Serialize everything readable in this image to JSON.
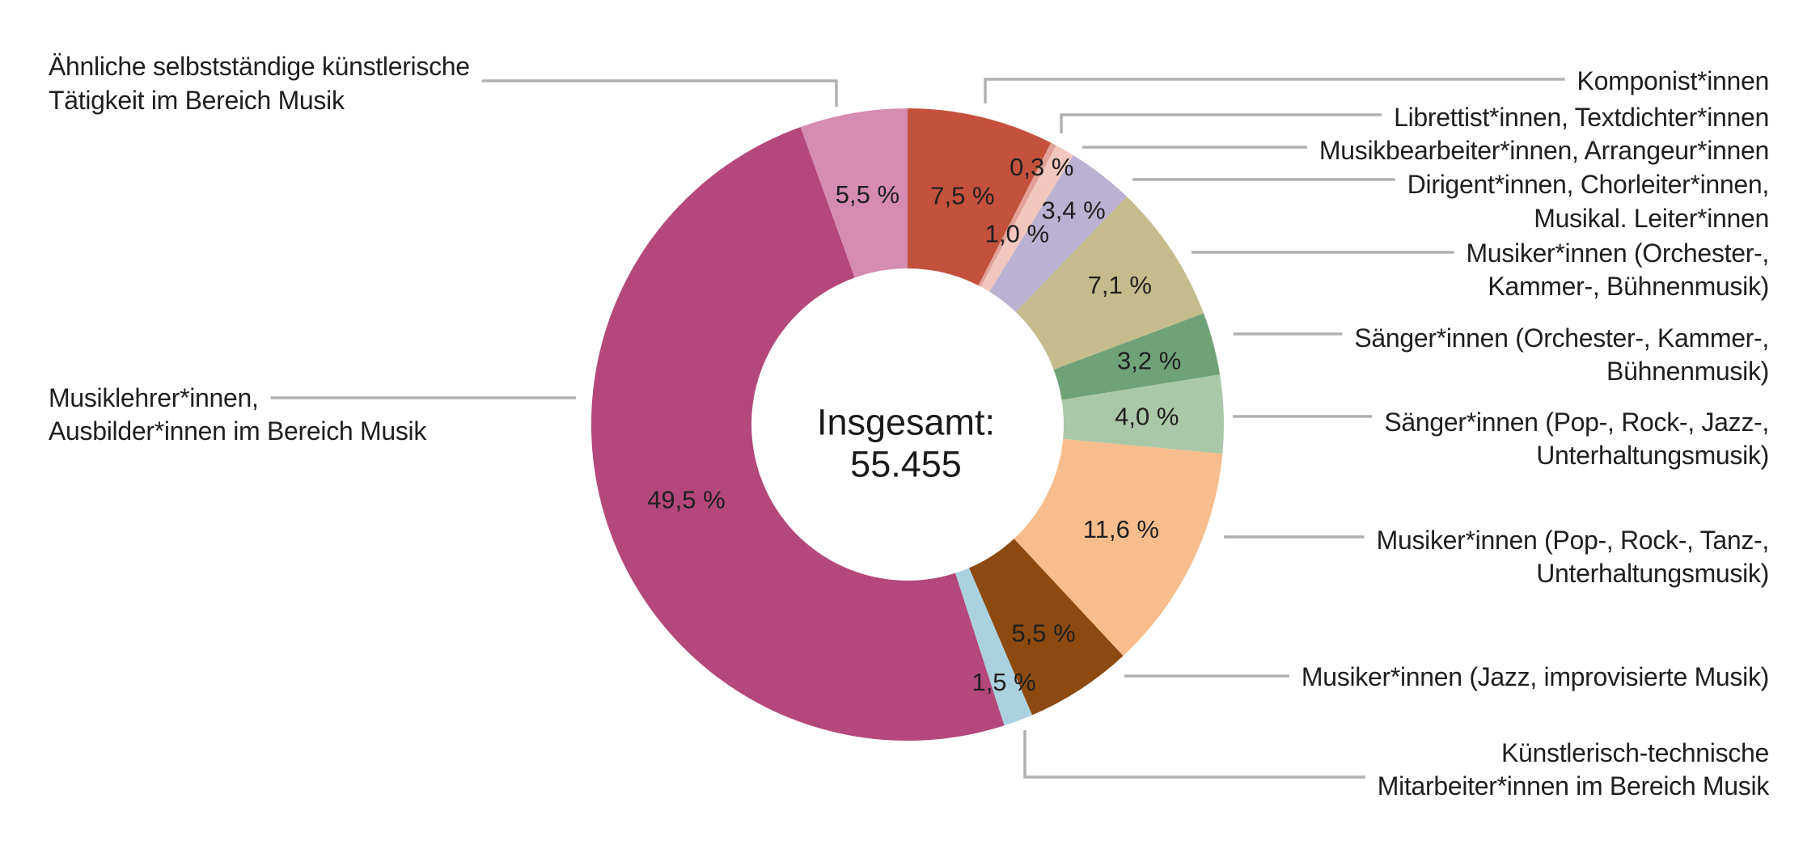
{
  "figure": {
    "background_color": "#ffffff",
    "text_color": "#1f1f1f",
    "leader_line_color": "#b0b0b0"
  },
  "chart_data": {
    "type": "pie",
    "subtype": "donut",
    "title": "",
    "center_text_line1": "Insgesamt:",
    "center_text_line2": "55.455",
    "total_value": 55455,
    "unit": "%",
    "start_angle_deg": 0,
    "direction": "clockwise",
    "legend_position": "callout-labels-both-sides",
    "grid": false,
    "slices": [
      {
        "key": "komponist",
        "label": "Komponist*innen",
        "label_lines": [
          "Komponist*innen"
        ],
        "value": 7.5,
        "value_label": "7,5 %",
        "color": "#c3513c"
      },
      {
        "key": "librettist-textdichter",
        "label": "Librettist*innen, Textdichter*innen",
        "label_lines": [
          "Librettist*innen, Textdichter*innen"
        ],
        "value": 0.3,
        "value_label": "0,3 %",
        "color": "#e2a198"
      },
      {
        "key": "musikbearbeiter-arrangeur",
        "label": "Musikbearbeiter*innen, Arrangeur*innen",
        "label_lines": [
          "Musikbearbeiter*innen, Arrangeur*innen"
        ],
        "value": 1.0,
        "value_label": "1,0 %",
        "color": "#f2c7bd"
      },
      {
        "key": "dirigent-chorleiter",
        "label": "Dirigent*innen, Chorleiter*innen, Musikal. Leiter*innen",
        "label_lines": [
          "Dirigent*innen, Chorleiter*innen,",
          "Musikal. Leiter*innen"
        ],
        "value": 3.4,
        "value_label": "3,4 %",
        "color": "#bab1d3"
      },
      {
        "key": "musiker-orchester",
        "label": "Musiker*innen (Orchester-, Kammer-, Bühnenmusik)",
        "label_lines": [
          "Musiker*innen (Orchester-,",
          "Kammer-, Bühnenmusik)"
        ],
        "value": 7.1,
        "value_label": "7,1 %",
        "color": "#c5bc8e"
      },
      {
        "key": "saenger-orchester",
        "label": "Sänger*innen (Orchester-, Kammer-, Bühnenmusik)",
        "label_lines": [
          "Sänger*innen (Orchester-, Kammer-,",
          "Bühnenmusik)"
        ],
        "value": 3.2,
        "value_label": "3,2 %",
        "color": "#6fa377"
      },
      {
        "key": "saenger-pop-rock-jazz",
        "label": "Sänger*innen (Pop-, Rock-, Jazz-, Unterhaltungsmusik)",
        "label_lines": [
          "Sänger*innen (Pop-, Rock-, Jazz-,",
          "Unterhaltungsmusik)"
        ],
        "value": 4.0,
        "value_label": "4,0 %",
        "color": "#a9c8a8"
      },
      {
        "key": "musiker-pop-rock-tanz",
        "label": "Musiker*innen (Pop-, Rock-, Tanz-, Unterhaltungsmusik)",
        "label_lines": [
          "Musiker*innen (Pop-, Rock-, Tanz-,",
          "Unterhaltungsmusik)"
        ],
        "value": 11.6,
        "value_label": "11,6 %",
        "color": "#f8bd8c"
      },
      {
        "key": "musiker-jazz",
        "label": "Musiker*innen (Jazz, improvisierte Musik)",
        "label_lines": [
          "Musiker*innen (Jazz, improvisierte Musik)"
        ],
        "value": 5.5,
        "value_label": "5,5 %",
        "color": "#8d4a10"
      },
      {
        "key": "kuenstlerisch-technische",
        "label": "Künstlerisch-technische Mitarbeiter*innen im Bereich Musik",
        "label_lines": [
          "Künstlerisch-technische",
          "Mitarbeiter*innen im Bereich Musik"
        ],
        "value": 1.5,
        "value_label": "1,5 %",
        "color": "#abd1e0"
      },
      {
        "key": "musiklehrer-ausbilder",
        "label": "Musiklehrer*innen, Ausbilder*innen im Bereich Musik",
        "label_lines": [
          "Musiklehrer*innen,",
          "Ausbilder*innen im Bereich Musik"
        ],
        "value": 49.5,
        "value_label": "49,5 %",
        "color": "#b4487a"
      },
      {
        "key": "aehnliche-taetigkeit",
        "label": "Ähnliche selbstständige künstlerische Tätigkeit im Bereich Musik",
        "label_lines": [
          "Ähnliche selbstständige künstlerische",
          "Tätigkeit im Bereich Musik"
        ],
        "value": 5.5,
        "value_label": "5,5 %",
        "color": "#d68bb1"
      }
    ]
  }
}
